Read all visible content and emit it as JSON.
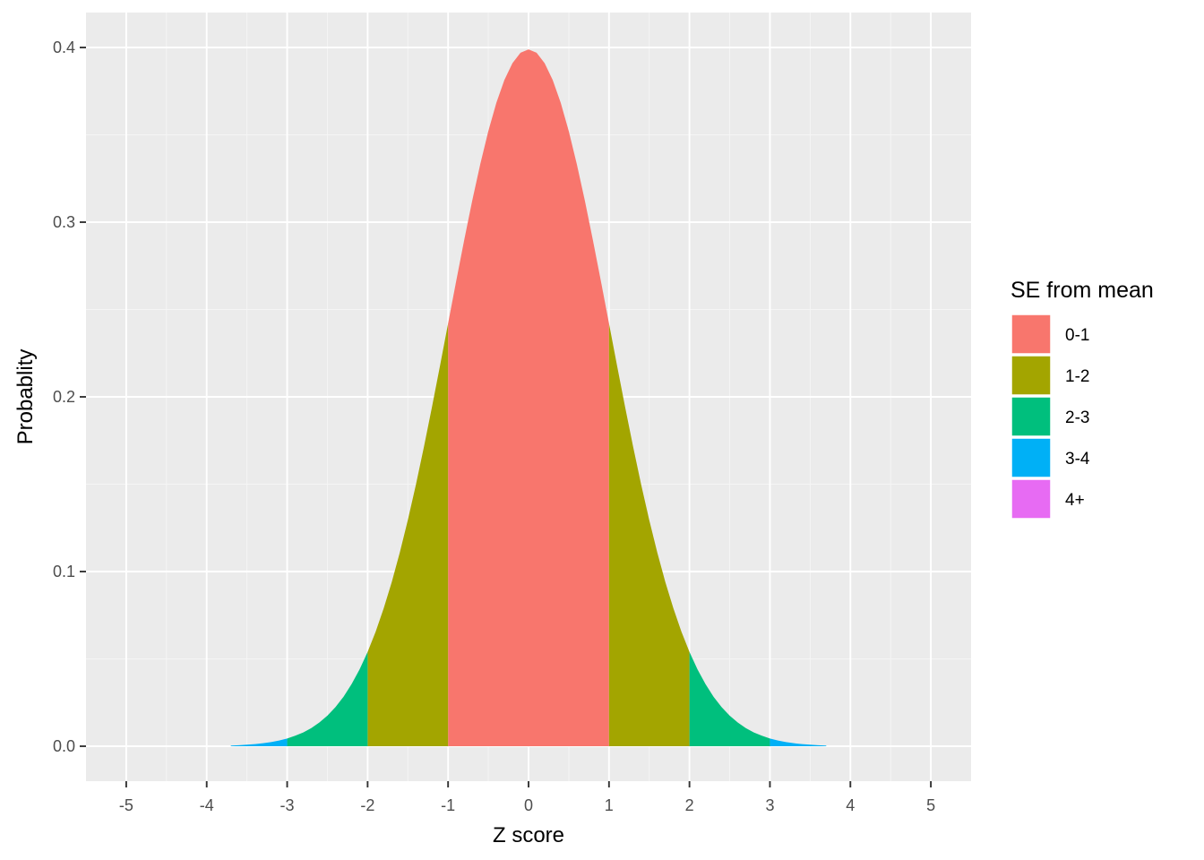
{
  "chart_data": {
    "type": "area",
    "title": "",
    "xlabel": "Z score",
    "ylabel": "Probablity",
    "xlim": [
      -5.5,
      5.5
    ],
    "ylim": [
      -0.02,
      0.42
    ],
    "x_ticks": [
      -5,
      -4,
      -3,
      -2,
      -1,
      0,
      1,
      2,
      3,
      4,
      5
    ],
    "x_tick_labels": [
      "-5",
      "-4",
      "-3",
      "-2",
      "-1",
      "0",
      "1",
      "2",
      "3",
      "4",
      "5"
    ],
    "y_ticks": [
      0.0,
      0.1,
      0.2,
      0.3,
      0.4
    ],
    "y_tick_labels": [
      "0.0",
      "0.1",
      "0.2",
      "0.3",
      "0.4"
    ],
    "grid": true,
    "curve": {
      "x": [
        -3.7,
        -3.6,
        -3.5,
        -3.4,
        -3.3,
        -3.2,
        -3.1,
        -3.0,
        -2.9,
        -2.8,
        -2.7,
        -2.6,
        -2.5,
        -2.4,
        -2.3,
        -2.2,
        -2.1,
        -2.0,
        -1.9,
        -1.8,
        -1.7,
        -1.6,
        -1.5,
        -1.4,
        -1.3,
        -1.2,
        -1.1,
        -1.0,
        -0.9,
        -0.8,
        -0.7,
        -0.6,
        -0.5,
        -0.4,
        -0.3,
        -0.2,
        -0.1,
        0.0,
        0.1,
        0.2,
        0.3,
        0.4,
        0.5,
        0.6,
        0.7,
        0.8,
        0.9,
        1.0,
        1.1,
        1.2,
        1.3,
        1.4,
        1.5,
        1.6,
        1.7,
        1.8,
        1.9,
        2.0,
        2.1,
        2.2,
        2.3,
        2.4,
        2.5,
        2.6,
        2.7,
        2.8,
        2.9,
        3.0,
        3.1,
        3.2,
        3.3,
        3.4,
        3.5,
        3.6,
        3.7
      ],
      "y": [
        0.0004,
        0.0006,
        0.0009,
        0.0012,
        0.0017,
        0.0024,
        0.0033,
        0.0044,
        0.006,
        0.0079,
        0.0104,
        0.0136,
        0.0175,
        0.0224,
        0.0283,
        0.0355,
        0.044,
        0.054,
        0.0656,
        0.079,
        0.094,
        0.1109,
        0.1295,
        0.1497,
        0.1714,
        0.1942,
        0.2179,
        0.242,
        0.2661,
        0.2897,
        0.3123,
        0.3332,
        0.3521,
        0.3683,
        0.3814,
        0.391,
        0.397,
        0.3989,
        0.397,
        0.391,
        0.3814,
        0.3683,
        0.3521,
        0.3332,
        0.3123,
        0.2897,
        0.2661,
        0.242,
        0.2179,
        0.1942,
        0.1714,
        0.1497,
        0.1295,
        0.1109,
        0.094,
        0.079,
        0.0656,
        0.054,
        0.044,
        0.0355,
        0.0283,
        0.0224,
        0.0175,
        0.0136,
        0.0104,
        0.0079,
        0.006,
        0.0044,
        0.0033,
        0.0024,
        0.0017,
        0.0012,
        0.0009,
        0.0006,
        0.0004
      ]
    },
    "series": [
      {
        "name": "0-1",
        "color": "#F8766D",
        "ranges": [
          [
            -1,
            1
          ]
        ]
      },
      {
        "name": "1-2",
        "color": "#A3A500",
        "ranges": [
          [
            -2,
            -1
          ],
          [
            1,
            2
          ]
        ]
      },
      {
        "name": "2-3",
        "color": "#00BF7D",
        "ranges": [
          [
            -3,
            -2
          ],
          [
            2,
            3
          ]
        ]
      },
      {
        "name": "3-4",
        "color": "#00B0F6",
        "ranges": [
          [
            -3.7,
            -3
          ],
          [
            3,
            3.7
          ]
        ]
      },
      {
        "name": "4+",
        "color": "#E76BF3",
        "ranges": []
      }
    ],
    "legend": {
      "title": "SE from mean",
      "placement": "right"
    }
  },
  "style": {
    "panel_background": "#EBEBEB",
    "grid_major": "#FFFFFF",
    "grid_minor": "#F5F5F5",
    "tick_color": "#333333"
  }
}
